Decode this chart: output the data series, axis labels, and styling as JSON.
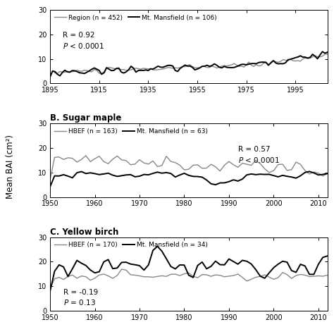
{
  "panel_A": {
    "title": "",
    "xmin": 1895,
    "xmax": 2008,
    "ymin": 0,
    "ymax": 30,
    "yticks": [
      0,
      10,
      20,
      30
    ],
    "xticks": [
      1895,
      1915,
      1935,
      1955,
      1975,
      1995
    ],
    "legend1": "Region (n = 452)",
    "legend2": "Mt. Mansfield (n = 106)",
    "color1": "#888888",
    "color2": "#000000",
    "ann_R": "R = 0.92",
    "ann_P": "$\\it{P}$ < 0.0001",
    "ann_x": 1900,
    "ann_y": 21
  },
  "panel_B": {
    "title": "B. Sugar maple",
    "xmin": 1950,
    "xmax": 2012,
    "ymin": 0,
    "ymax": 30,
    "yticks": [
      0,
      10,
      20,
      30
    ],
    "xticks": [
      1950,
      1960,
      1970,
      1980,
      1990,
      2000,
      2010
    ],
    "legend1": "HBEF (n = 163)",
    "legend2": "Mt. Mansfield (n = 63)",
    "color1": "#888888",
    "color2": "#000000",
    "ann_R": "R = 0.57",
    "ann_P": "$\\it{P}$ < 0.0001",
    "ann_x": 1992,
    "ann_y": 21,
    "ann_ha": "left"
  },
  "panel_C": {
    "title": "C. Yellow birch",
    "xmin": 1950,
    "xmax": 2012,
    "ymin": 0,
    "ymax": 30,
    "yticks": [
      0,
      10,
      20,
      30
    ],
    "xticks": [
      1950,
      1960,
      1970,
      1980,
      1990,
      2000,
      2010
    ],
    "legend1": "HBEF (n = 170)",
    "legend2": "Mt. Mansfield (n = 34)",
    "color1": "#888888",
    "color2": "#000000",
    "ann_R": "R = -0.19",
    "ann_P": "$\\it{P}$ = 0.13",
    "ann_x": 1953,
    "ann_y": 9,
    "ann_ha": "left"
  },
  "ylabel": "Mean BAI (cm²)",
  "lw1": 1.0,
  "lw2": 1.4,
  "legend_fontsize": 6.5,
  "tick_labelsize": 7,
  "ann_fontsize": 7.5,
  "title_fontsize": 8.5
}
